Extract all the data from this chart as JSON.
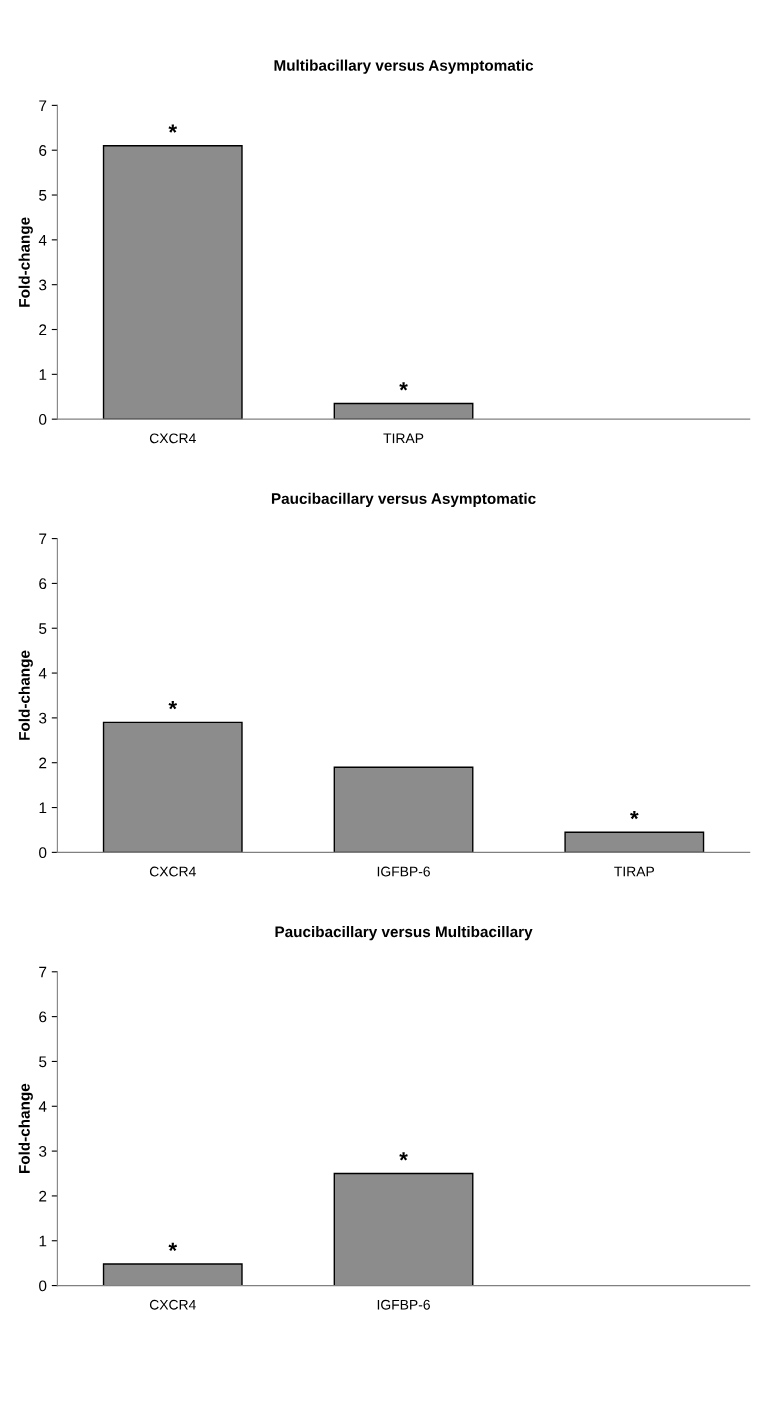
{
  "chart_data": [
    {
      "type": "bar",
      "title": "Multibacillary versus Asymptomatic",
      "ylabel": "Fold-change",
      "categories": [
        "CXCR4",
        "TIRAP",
        null
      ],
      "values": [
        6.1,
        0.35,
        null
      ],
      "color": "#8c8c8c",
      "ylim": [
        0,
        7
      ],
      "yticks": [
        0,
        1,
        2,
        3,
        4,
        5,
        6,
        7
      ],
      "grid": false,
      "legend": false,
      "annotations": [
        {
          "text": "*",
          "x": "CXCR4",
          "y": 6.1
        },
        {
          "text": "*",
          "x": "TIRAP",
          "y": 0.35
        }
      ]
    },
    {
      "type": "bar",
      "title": "Paucibacillary versus Asymptomatic",
      "ylabel": "Fold-change",
      "categories": [
        "CXCR4",
        "IGFBP-6",
        "TIRAP"
      ],
      "values": [
        2.9,
        1.9,
        0.45
      ],
      "color": "#8c8c8c",
      "ylim": [
        0,
        7
      ],
      "yticks": [
        0,
        1,
        2,
        3,
        4,
        5,
        6,
        7
      ],
      "grid": false,
      "legend": false,
      "annotations": [
        {
          "text": "*",
          "x": "CXCR4",
          "y": 2.9
        },
        {
          "text": "*",
          "x": "TIRAP",
          "y": 0.45
        }
      ]
    },
    {
      "type": "bar",
      "title": "Paucibacillary versus Multibacillary",
      "ylabel": "Fold-change",
      "categories": [
        "CXCR4",
        "IGFBP-6",
        null
      ],
      "values": [
        0.48,
        2.5,
        null
      ],
      "color": "#8c8c8c",
      "ylim": [
        0,
        7
      ],
      "yticks": [
        0,
        1,
        2,
        3,
        4,
        5,
        6,
        7
      ],
      "grid": false,
      "legend": false,
      "annotations": [
        {
          "text": "*",
          "x": "CXCR4",
          "y": 0.48
        },
        {
          "text": "*",
          "x": "IGFBP-6",
          "y": 2.5
        }
      ]
    }
  ]
}
